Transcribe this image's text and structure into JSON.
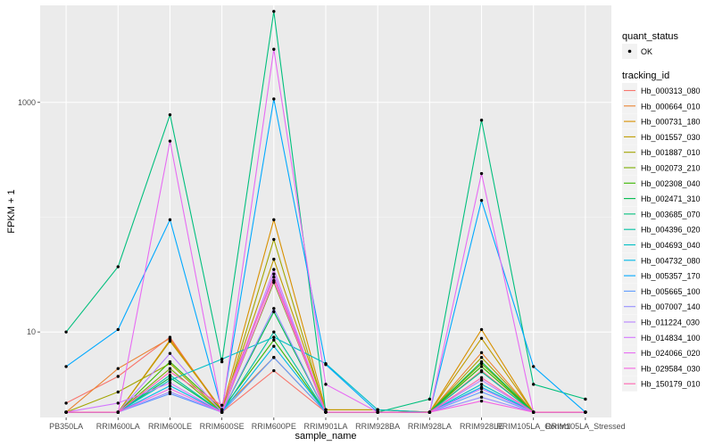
{
  "chart_data": {
    "type": "line",
    "xlabel": "sample_name",
    "ylabel": "FPKM + 1",
    "y_scale": "log10",
    "ylim": [
      1.8,
      7000
    ],
    "y_ticks": [
      {
        "value": 10,
        "label": "10"
      },
      {
        "value": 1000,
        "label": "1000"
      }
    ],
    "grid": true,
    "legend_position": "right",
    "categories": [
      "PB350LA",
      "RRIM600LA",
      "RRIM600LE",
      "RRIM600SE",
      "RRIM600PE",
      "RRIM901LA",
      "RRIM928BA",
      "RRIM928LA",
      "RRIM928LE",
      "RRIM105LA_Control",
      "RRIM105LA_Stressed"
    ],
    "point_legend": {
      "title": "quant_status",
      "label": "OK"
    },
    "series_legend_title": "tracking_id",
    "series": [
      {
        "name": "Hb_000313_080",
        "color": "#F8766D",
        "values": [
          2.4,
          4.1,
          9.0,
          2.0,
          4.6,
          2.0,
          2.0,
          2.0,
          4.6,
          2.0,
          2.0
        ]
      },
      {
        "name": "Hb_000664_010",
        "color": "#EA8331",
        "values": [
          2.0,
          4.8,
          8.8,
          2.1,
          6.0,
          2.0,
          2.0,
          2.0,
          6.6,
          2.0,
          2.0
        ]
      },
      {
        "name": "Hb_000731_180",
        "color": "#D89000",
        "values": [
          2.0,
          2.0,
          8.5,
          2.1,
          95.0,
          2.1,
          2.1,
          2.0,
          10.5,
          2.0,
          2.0
        ]
      },
      {
        "name": "Hb_001557_030",
        "color": "#C09B00",
        "values": [
          2.0,
          2.0,
          8.3,
          2.1,
          43.0,
          2.1,
          2.1,
          2.0,
          8.8,
          2.0,
          2.0
        ]
      },
      {
        "name": "Hb_001887_010",
        "color": "#A3A500",
        "values": [
          2.0,
          3.0,
          5.3,
          2.0,
          64.0,
          2.0,
          2.0,
          2.0,
          6.0,
          2.0,
          2.0
        ]
      },
      {
        "name": "Hb_002073_210",
        "color": "#7CAE00",
        "values": [
          2.0,
          2.0,
          4.8,
          2.0,
          27.0,
          2.0,
          2.0,
          2.0,
          5.3,
          2.0,
          2.0
        ]
      },
      {
        "name": "Hb_002308_040",
        "color": "#39B600",
        "values": [
          2.0,
          2.0,
          5.5,
          2.1,
          8.5,
          2.0,
          2.0,
          2.0,
          5.0,
          2.0,
          2.0
        ]
      },
      {
        "name": "Hb_002471_310",
        "color": "#00BB4E",
        "values": [
          2.0,
          2.0,
          4.0,
          2.0,
          15.0,
          2.0,
          2.0,
          2.0,
          5.5,
          2.0,
          2.0
        ]
      },
      {
        "name": "Hb_003685_070",
        "color": "#00BF7D",
        "values": [
          10.0,
          37.0,
          780.0,
          5.5,
          6200.0,
          2.0,
          2.0,
          2.6,
          700.0,
          3.5,
          2.6
        ]
      },
      {
        "name": "Hb_004396_020",
        "color": "#00C1A3",
        "values": [
          2.0,
          2.0,
          4.2,
          2.0,
          10.0,
          2.0,
          2.0,
          2.0,
          4.5,
          2.0,
          2.0
        ]
      },
      {
        "name": "Hb_004693_040",
        "color": "#00BFC4",
        "values": [
          2.0,
          2.0,
          3.8,
          5.8,
          9.0,
          5.3,
          2.1,
          2.0,
          3.5,
          2.0,
          2.0
        ]
      },
      {
        "name": "Hb_004732_080",
        "color": "#00B8E7",
        "values": [
          2.0,
          2.0,
          3.4,
          2.0,
          7.5,
          2.0,
          2.0,
          2.0,
          3.3,
          2.0,
          2.0
        ]
      },
      {
        "name": "Hb_005357_170",
        "color": "#00A9FF",
        "values": [
          5.0,
          10.5,
          95.0,
          2.1,
          1070.0,
          5.2,
          2.0,
          2.0,
          140.0,
          5.0,
          2.0
        ]
      },
      {
        "name": "Hb_005665_100",
        "color": "#619CFF",
        "values": [
          2.0,
          2.0,
          2.9,
          2.0,
          6.0,
          2.0,
          2.0,
          2.0,
          3.0,
          2.0,
          2.0
        ]
      },
      {
        "name": "Hb_007007_140",
        "color": "#9590FF",
        "values": [
          2.0,
          2.0,
          3.0,
          2.0,
          16.0,
          2.0,
          2.0,
          2.0,
          2.7,
          2.0,
          2.0
        ]
      },
      {
        "name": "Hb_011224_030",
        "color": "#B983FF",
        "values": [
          2.0,
          2.0,
          6.5,
          2.0,
          32.0,
          2.0,
          2.0,
          2.0,
          3.8,
          2.0,
          2.0
        ]
      },
      {
        "name": "Hb_014834_100",
        "color": "#D376FF",
        "values": [
          2.0,
          2.4,
          3.6,
          2.0,
          35.0,
          2.0,
          2.0,
          2.0,
          3.2,
          2.0,
          2.0
        ]
      },
      {
        "name": "Hb_024066_020",
        "color": "#E76BF3",
        "values": [
          2.0,
          2.0,
          460.0,
          2.0,
          2900.0,
          3.5,
          2.0,
          2.0,
          240.0,
          2.0,
          2.0
        ]
      },
      {
        "name": "Hb_029584_030",
        "color": "#F564E3",
        "values": [
          2.0,
          2.0,
          3.2,
          2.0,
          28.0,
          2.0,
          2.0,
          2.0,
          2.5,
          2.0,
          2.0
        ]
      },
      {
        "name": "Hb_150179_010",
        "color": "#FF64B0",
        "values": [
          2.0,
          2.0,
          4.5,
          2.3,
          30.0,
          2.0,
          2.0,
          2.0,
          4.0,
          2.0,
          2.0
        ]
      }
    ]
  }
}
